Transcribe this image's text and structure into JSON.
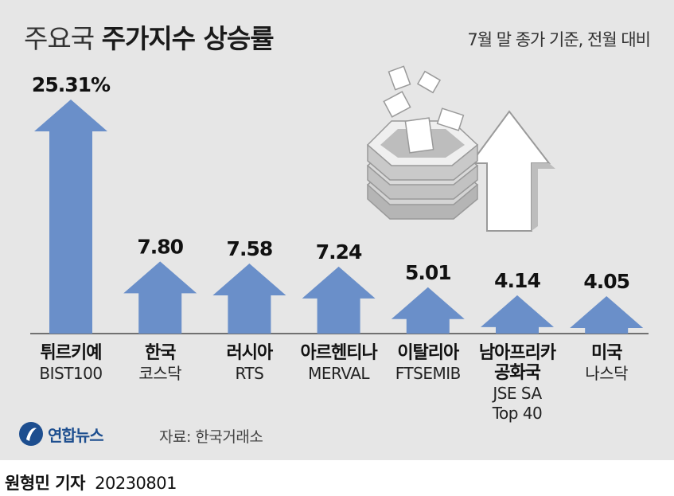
{
  "header": {
    "title_light": "주요국",
    "title_bold": "주가지수 상승률",
    "subtitle": "7월 말 종가 기준, 전월 대비"
  },
  "footer": {
    "source": "자료: 한국거래소",
    "logo_text": "연합뉴스",
    "reporter": "원형민 기자",
    "date": "20230801"
  },
  "colors": {
    "bar": "#6a8fc9",
    "panel": "#e6e6e6"
  },
  "chart_data": {
    "type": "bar",
    "title": "주요국 주가지수 상승률",
    "subtitle": "7월 말 종가 기준, 전월 대비",
    "categories": [
      {
        "country": [
          "튀르키예"
        ],
        "index": [
          "BIST100"
        ]
      },
      {
        "country": [
          "한국"
        ],
        "index": [
          "코스닥"
        ]
      },
      {
        "country": [
          "러시아"
        ],
        "index": [
          "RTS"
        ]
      },
      {
        "country": [
          "아르헨티나"
        ],
        "index": [
          "MERVAL"
        ]
      },
      {
        "country": [
          "이탈리아"
        ],
        "index": [
          "FTSEMIB"
        ]
      },
      {
        "country": [
          "남아프리카",
          "공화국"
        ],
        "index": [
          "JSE SA",
          "Top 40"
        ]
      },
      {
        "country": [
          "미국"
        ],
        "index": [
          "나스닥"
        ]
      }
    ],
    "values": [
      25.31,
      7.8,
      7.58,
      7.24,
      5.01,
      4.14,
      4.05
    ],
    "value_labels": [
      "25.31%",
      "7.80",
      "7.58",
      "7.24",
      "5.01",
      "4.14",
      "4.05"
    ],
    "ylim": [
      0,
      25.31
    ]
  }
}
